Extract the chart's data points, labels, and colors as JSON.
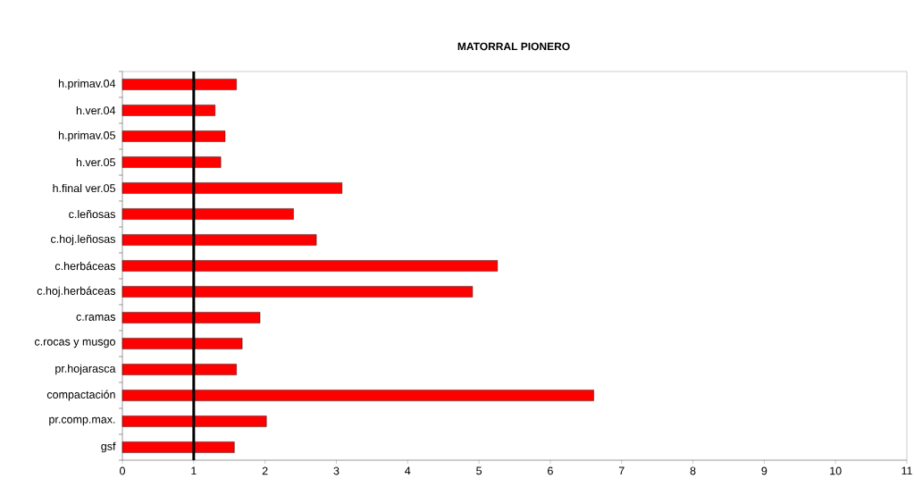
{
  "chart_data": {
    "type": "bar",
    "orientation": "horizontal",
    "title": "MATORRAL PIONERO",
    "categories": [
      "h.primav.04",
      "h.ver.04",
      "h.primav.05",
      "h.ver.05",
      "h.final ver.05",
      "c.leñosas",
      "c.hoj.leñosas",
      "c.herbáceas",
      "c.hoj.herbáceas",
      "c.ramas",
      "c.rocas y musgo",
      "pr.hojarasca",
      "compactación",
      "pr.comp.max.",
      "gsf"
    ],
    "values": [
      1.6,
      1.3,
      1.44,
      1.38,
      3.08,
      2.4,
      2.72,
      5.26,
      4.91,
      1.93,
      1.68,
      1.6,
      6.61,
      2.02,
      1.57
    ],
    "color": "#ff0000",
    "xlim": [
      0,
      11
    ],
    "xticks": [
      0,
      1,
      2,
      3,
      4,
      5,
      6,
      7,
      8,
      9,
      10,
      11
    ],
    "ref_lines": [
      {
        "axis": "x",
        "value": 1,
        "color": "#000000"
      }
    ],
    "grid": false
  }
}
